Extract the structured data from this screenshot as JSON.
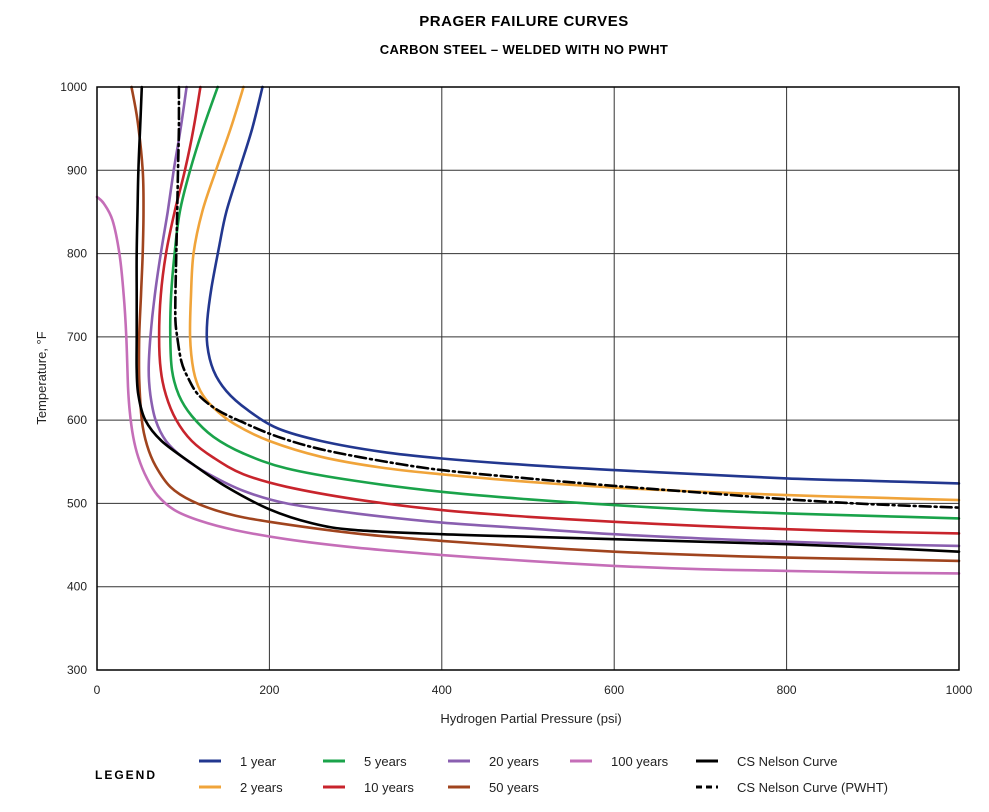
{
  "chart_data": {
    "type": "line",
    "title": "PRAGER FAILURE CURVES",
    "subtitle": "CARBON STEEL – WELDED WITH NO PWHT",
    "xlabel": "Hydrogen Partial Pressure (psi)",
    "ylabel": "Temperature, °F",
    "xlim": [
      0,
      1000
    ],
    "ylim": [
      300,
      1000
    ],
    "xticks": [
      "0",
      "200",
      "400",
      "600",
      "800",
      "1000"
    ],
    "yticks": [
      "300",
      "400",
      "500",
      "600",
      "700",
      "800",
      "900",
      "1000"
    ],
    "grid": true,
    "legend_title": "LEGEND",
    "legend_position": "bottom",
    "series": [
      {
        "name": "1 year",
        "color": "#22378f",
        "dash": "solid",
        "points": [
          [
            192,
            1000
          ],
          [
            180,
            950
          ],
          [
            165,
            900
          ],
          [
            150,
            850
          ],
          [
            142,
            810
          ],
          [
            133,
            760
          ],
          [
            128,
            720
          ],
          [
            128,
            690
          ],
          [
            135,
            660
          ],
          [
            150,
            635
          ],
          [
            175,
            612
          ],
          [
            210,
            590
          ],
          [
            260,
            575
          ],
          [
            330,
            562
          ],
          [
            400,
            554
          ],
          [
            500,
            546
          ],
          [
            600,
            540
          ],
          [
            700,
            535
          ],
          [
            800,
            530
          ],
          [
            900,
            527
          ],
          [
            1000,
            524
          ]
        ]
      },
      {
        "name": "2 years",
        "color": "#f0a43a",
        "dash": "solid",
        "points": [
          [
            170,
            1000
          ],
          [
            155,
            950
          ],
          [
            138,
            900
          ],
          [
            122,
            850
          ],
          [
            112,
            800
          ],
          [
            109,
            750
          ],
          [
            108,
            700
          ],
          [
            112,
            660
          ],
          [
            120,
            635
          ],
          [
            135,
            615
          ],
          [
            160,
            595
          ],
          [
            200,
            575
          ],
          [
            260,
            556
          ],
          [
            330,
            543
          ],
          [
            400,
            535
          ],
          [
            500,
            526
          ],
          [
            600,
            519
          ],
          [
            700,
            514
          ],
          [
            800,
            510
          ],
          [
            900,
            507
          ],
          [
            1000,
            504
          ]
        ]
      },
      {
        "name": "5 years",
        "color": "#1aa34a",
        "dash": "solid",
        "points": [
          [
            140,
            1000
          ],
          [
            123,
            950
          ],
          [
            108,
            900
          ],
          [
            96,
            850
          ],
          [
            90,
            800
          ],
          [
            86,
            750
          ],
          [
            85,
            700
          ],
          [
            87,
            660
          ],
          [
            95,
            630
          ],
          [
            110,
            605
          ],
          [
            135,
            580
          ],
          [
            170,
            560
          ],
          [
            220,
            542
          ],
          [
            300,
            527
          ],
          [
            400,
            514
          ],
          [
            500,
            505
          ],
          [
            600,
            498
          ],
          [
            700,
            492
          ],
          [
            800,
            488
          ],
          [
            900,
            485
          ],
          [
            1000,
            482
          ]
        ]
      },
      {
        "name": "10 years",
        "color": "#c8242c",
        "dash": "solid",
        "points": [
          [
            120,
            1000
          ],
          [
            112,
            950
          ],
          [
            102,
            900
          ],
          [
            90,
            850
          ],
          [
            80,
            800
          ],
          [
            74,
            750
          ],
          [
            72,
            700
          ],
          [
            74,
            660
          ],
          [
            80,
            630
          ],
          [
            92,
            600
          ],
          [
            110,
            575
          ],
          [
            135,
            555
          ],
          [
            170,
            535
          ],
          [
            220,
            520
          ],
          [
            300,
            505
          ],
          [
            400,
            492
          ],
          [
            500,
            484
          ],
          [
            600,
            478
          ],
          [
            700,
            473
          ],
          [
            800,
            469
          ],
          [
            900,
            466
          ],
          [
            1000,
            464
          ]
        ]
      },
      {
        "name": "20 years",
        "color": "#8a5fb0",
        "dash": "solid",
        "points": [
          [
            104,
            1000
          ],
          [
            97,
            950
          ],
          [
            89,
            900
          ],
          [
            82,
            850
          ],
          [
            74,
            800
          ],
          [
            67,
            750
          ],
          [
            62,
            700
          ],
          [
            60,
            660
          ],
          [
            62,
            630
          ],
          [
            68,
            600
          ],
          [
            80,
            575
          ],
          [
            100,
            555
          ],
          [
            130,
            535
          ],
          [
            170,
            515
          ],
          [
            220,
            500
          ],
          [
            300,
            488
          ],
          [
            400,
            477
          ],
          [
            500,
            470
          ],
          [
            600,
            463
          ],
          [
            700,
            458
          ],
          [
            800,
            454
          ],
          [
            900,
            451
          ],
          [
            1000,
            449
          ]
        ]
      },
      {
        "name": "50 years",
        "color": "#a0441e",
        "dash": "solid",
        "points": [
          [
            40,
            1000
          ],
          [
            47,
            960
          ],
          [
            53,
            900
          ],
          [
            54,
            850
          ],
          [
            53,
            800
          ],
          [
            51,
            750
          ],
          [
            49,
            700
          ],
          [
            49,
            650
          ],
          [
            52,
            600
          ],
          [
            58,
            570
          ],
          [
            68,
            545
          ],
          [
            85,
            520
          ],
          [
            110,
            503
          ],
          [
            150,
            488
          ],
          [
            200,
            478
          ],
          [
            300,
            464
          ],
          [
            400,
            455
          ],
          [
            500,
            448
          ],
          [
            600,
            442
          ],
          [
            700,
            438
          ],
          [
            800,
            435
          ],
          [
            900,
            433
          ],
          [
            1000,
            431
          ]
        ]
      },
      {
        "name": "100 years",
        "color": "#c56eb8",
        "dash": "solid",
        "points": [
          [
            0,
            868
          ],
          [
            8,
            860
          ],
          [
            18,
            840
          ],
          [
            26,
            800
          ],
          [
            31,
            750
          ],
          [
            34,
            700
          ],
          [
            36,
            640
          ],
          [
            38,
            610
          ],
          [
            42,
            580
          ],
          [
            48,
            555
          ],
          [
            58,
            530
          ],
          [
            70,
            510
          ],
          [
            90,
            492
          ],
          [
            120,
            479
          ],
          [
            160,
            468
          ],
          [
            220,
            457
          ],
          [
            300,
            447
          ],
          [
            400,
            438
          ],
          [
            500,
            431
          ],
          [
            600,
            425
          ],
          [
            700,
            421
          ],
          [
            800,
            419
          ],
          [
            900,
            417
          ],
          [
            1000,
            416
          ]
        ]
      },
      {
        "name": "CS Nelson Curve",
        "color": "#000000",
        "dash": "solid",
        "points": [
          [
            52,
            1000
          ],
          [
            50,
            950
          ],
          [
            48,
            900
          ],
          [
            47,
            850
          ],
          [
            46,
            800
          ],
          [
            46,
            750
          ],
          [
            46,
            700
          ],
          [
            46,
            660
          ],
          [
            48,
            630
          ],
          [
            56,
            600
          ],
          [
            75,
            575
          ],
          [
            110,
            548
          ],
          [
            150,
            520
          ],
          [
            200,
            493
          ],
          [
            250,
            476
          ],
          [
            300,
            468
          ],
          [
            400,
            463
          ],
          [
            500,
            460
          ],
          [
            600,
            457
          ],
          [
            700,
            454
          ],
          [
            800,
            451
          ],
          [
            900,
            447
          ],
          [
            1000,
            442
          ]
        ]
      },
      {
        "name": "CS Nelson Curve (PWHT)",
        "color": "#000000",
        "dash": "dashed",
        "points": [
          [
            95,
            1000
          ],
          [
            95,
            950
          ],
          [
            94,
            900
          ],
          [
            93,
            850
          ],
          [
            92,
            800
          ],
          [
            91,
            750
          ],
          [
            91,
            720
          ],
          [
            93,
            700
          ],
          [
            98,
            670
          ],
          [
            106,
            650
          ],
          [
            118,
            630
          ],
          [
            140,
            612
          ],
          [
            170,
            597
          ],
          [
            210,
            580
          ],
          [
            260,
            565
          ],
          [
            330,
            551
          ],
          [
            400,
            540
          ],
          [
            500,
            530
          ],
          [
            600,
            521
          ],
          [
            700,
            513
          ],
          [
            800,
            505
          ],
          [
            900,
            499
          ],
          [
            1000,
            495
          ]
        ]
      }
    ]
  }
}
